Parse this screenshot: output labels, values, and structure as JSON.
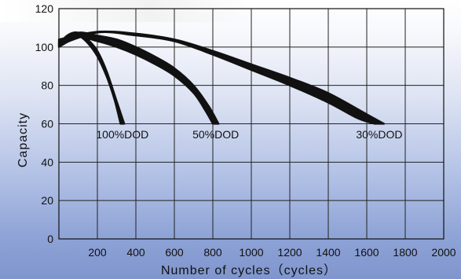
{
  "chart_data": {
    "type": "line",
    "title": "",
    "xlabel": "Number of cycles（cycles）",
    "ylabel": "Capacity",
    "xlim": [
      0,
      2000
    ],
    "ylim": [
      0,
      120
    ],
    "x_ticks": [
      "200",
      "400",
      "600",
      "800",
      "1000",
      "1200",
      "1400",
      "1600",
      "1800",
      "2000"
    ],
    "y_ticks": [
      "0",
      "20",
      "40",
      "60",
      "80",
      "100",
      "120"
    ],
    "grid": true,
    "series": [
      {
        "name": "100%DOD",
        "upper": [
          [
            0,
            102
          ],
          [
            50,
            106.5
          ],
          [
            100,
            107.5
          ],
          [
            150,
            104
          ],
          [
            200,
            98
          ],
          [
            250,
            87
          ],
          [
            300,
            72
          ],
          [
            340,
            60
          ]
        ],
        "lower": [
          [
            0,
            100
          ],
          [
            50,
            106
          ],
          [
            100,
            106
          ],
          [
            150,
            102
          ],
          [
            200,
            95
          ],
          [
            250,
            84
          ],
          [
            290,
            72
          ],
          [
            320,
            60
          ]
        ]
      },
      {
        "name": "50%DOD",
        "upper": [
          [
            0,
            103
          ],
          [
            100,
            107.5
          ],
          [
            200,
            106
          ],
          [
            300,
            104
          ],
          [
            400,
            100
          ],
          [
            500,
            95
          ],
          [
            600,
            89
          ],
          [
            700,
            80
          ],
          [
            780,
            69
          ],
          [
            830,
            60
          ]
        ],
        "lower": [
          [
            0,
            100
          ],
          [
            100,
            105
          ],
          [
            200,
            103
          ],
          [
            300,
            100
          ],
          [
            400,
            96
          ],
          [
            500,
            91
          ],
          [
            600,
            85
          ],
          [
            700,
            76
          ],
          [
            760,
            67
          ],
          [
            800,
            60
          ]
        ]
      },
      {
        "name": "30%DOD",
        "upper": [
          [
            0,
            104
          ],
          [
            200,
            108
          ],
          [
            400,
            107
          ],
          [
            600,
            104
          ],
          [
            800,
            98
          ],
          [
            1000,
            91
          ],
          [
            1200,
            84
          ],
          [
            1400,
            76
          ],
          [
            1600,
            65
          ],
          [
            1690,
            60
          ]
        ],
        "lower": [
          [
            0,
            101
          ],
          [
            200,
            107.5
          ],
          [
            400,
            106
          ],
          [
            600,
            103
          ],
          [
            800,
            96
          ],
          [
            1000,
            88
          ],
          [
            1200,
            80
          ],
          [
            1400,
            71
          ],
          [
            1550,
            63
          ],
          [
            1640,
            60
          ]
        ]
      }
    ],
    "annotations": [
      "100%DOD",
      "50%DOD",
      "30%DOD"
    ]
  }
}
